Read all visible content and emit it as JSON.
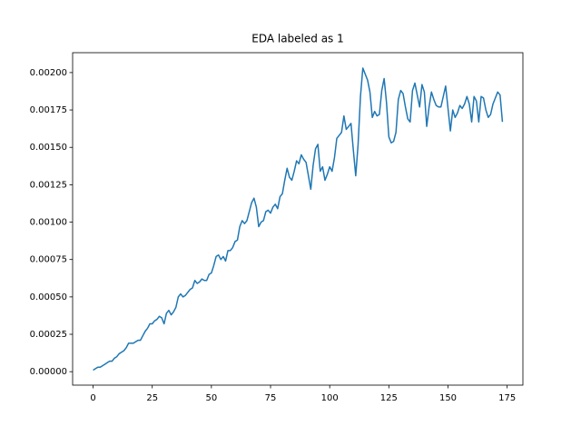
{
  "chart_data": {
    "type": "line",
    "title": "EDA labeled as 1",
    "series": [
      {
        "color": "#1f77b4",
        "values": [
          1e-05,
          2e-05,
          3e-05,
          3e-05,
          4e-05,
          5e-05,
          6e-05,
          7e-05,
          7e-05,
          9e-05,
          0.0001,
          0.00012,
          0.00013,
          0.00014,
          0.00016,
          0.00019,
          0.00019,
          0.00019,
          0.0002,
          0.00021,
          0.00021,
          0.00024,
          0.00027,
          0.00029,
          0.00032,
          0.00032,
          0.00034,
          0.00035,
          0.00037,
          0.00036,
          0.00032,
          0.00039,
          0.00041,
          0.00038,
          0.0004,
          0.00043,
          0.0005,
          0.00052,
          0.0005,
          0.00051,
          0.00053,
          0.00055,
          0.00056,
          0.00061,
          0.00059,
          0.0006,
          0.00062,
          0.00061,
          0.00061,
          0.00065,
          0.00066,
          0.00071,
          0.00077,
          0.00078,
          0.00075,
          0.00077,
          0.00074,
          0.00081,
          0.00081,
          0.00083,
          0.00087,
          0.00088,
          0.00097,
          0.00101,
          0.00099,
          0.00101,
          0.00107,
          0.00113,
          0.00116,
          0.0011,
          0.00097,
          0.001,
          0.00101,
          0.00107,
          0.00108,
          0.00106,
          0.0011,
          0.00112,
          0.00109,
          0.00117,
          0.00119,
          0.00128,
          0.00136,
          0.0013,
          0.00128,
          0.00134,
          0.00141,
          0.00139,
          0.00145,
          0.00142,
          0.0014,
          0.00131,
          0.00122,
          0.00138,
          0.00149,
          0.00152,
          0.00134,
          0.00137,
          0.00128,
          0.00132,
          0.00137,
          0.00134,
          0.00143,
          0.00156,
          0.00158,
          0.0016,
          0.00171,
          0.00162,
          0.00164,
          0.00166,
          0.00148,
          0.00131,
          0.00152,
          0.00184,
          0.00203,
          0.00199,
          0.00195,
          0.00187,
          0.0017,
          0.00174,
          0.00171,
          0.00172,
          0.00188,
          0.00196,
          0.0018,
          0.00157,
          0.00153,
          0.00154,
          0.0016,
          0.00182,
          0.00188,
          0.00186,
          0.00177,
          0.00169,
          0.00167,
          0.00188,
          0.00193,
          0.00185,
          0.00177,
          0.00192,
          0.00187,
          0.00164,
          0.00177,
          0.00187,
          0.00182,
          0.00178,
          0.00177,
          0.00177,
          0.00184,
          0.00191,
          0.00176,
          0.00161,
          0.00175,
          0.0017,
          0.00173,
          0.00178,
          0.00176,
          0.00179,
          0.00184,
          0.00179,
          0.00167,
          0.00184,
          0.00181,
          0.00167,
          0.00184,
          0.00183,
          0.00175,
          0.0017,
          0.00172,
          0.00179,
          0.00183,
          0.00187,
          0.00185,
          0.00167
        ]
      }
    ],
    "xlim": [
      -8.65,
      181.65
    ],
    "xticks": [
      0,
      25,
      50,
      75,
      100,
      125,
      150,
      175
    ],
    "ylim": [
      -9e-05,
      0.002133
    ],
    "yticks": [
      {
        "value": 0,
        "label": "0.00000"
      },
      {
        "value": 0.00025,
        "label": "0.00025"
      },
      {
        "value": 0.0005,
        "label": "0.00050"
      },
      {
        "value": 0.00075,
        "label": "0.00075"
      },
      {
        "value": 0.001,
        "label": "0.00100"
      },
      {
        "value": 0.00125,
        "label": "0.00125"
      },
      {
        "value": 0.0015,
        "label": "0.00150"
      },
      {
        "value": 0.00175,
        "label": "0.00175"
      },
      {
        "value": 0.002,
        "label": "0.00200"
      }
    ],
    "grid": false
  }
}
